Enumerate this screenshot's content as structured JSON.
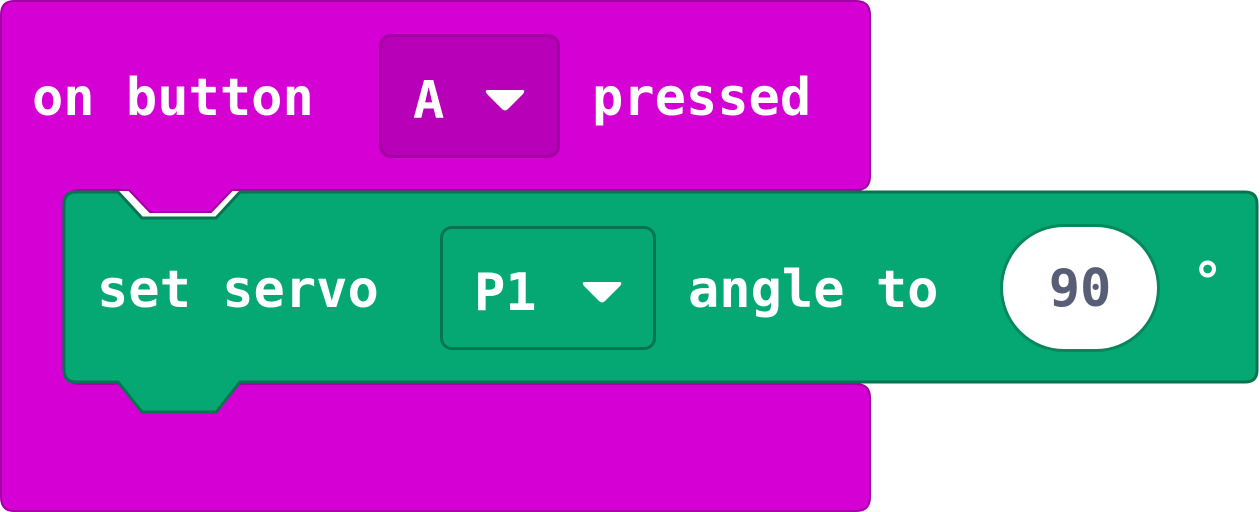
{
  "event_block": {
    "prefix": "on button",
    "button_dropdown": {
      "selected": "A",
      "icon": "triangle-down-icon"
    },
    "suffix": "pressed",
    "color": "#d400d4",
    "dropdown_color": "#b800b8",
    "border_color": "#a300a3"
  },
  "servo_block": {
    "prefix": "set servo",
    "pin_dropdown": {
      "selected": "P1",
      "icon": "triangle-down-icon"
    },
    "middle": "angle to",
    "angle_value": "90",
    "unit": "°",
    "color": "#05a873",
    "border_color": "#06754f"
  }
}
